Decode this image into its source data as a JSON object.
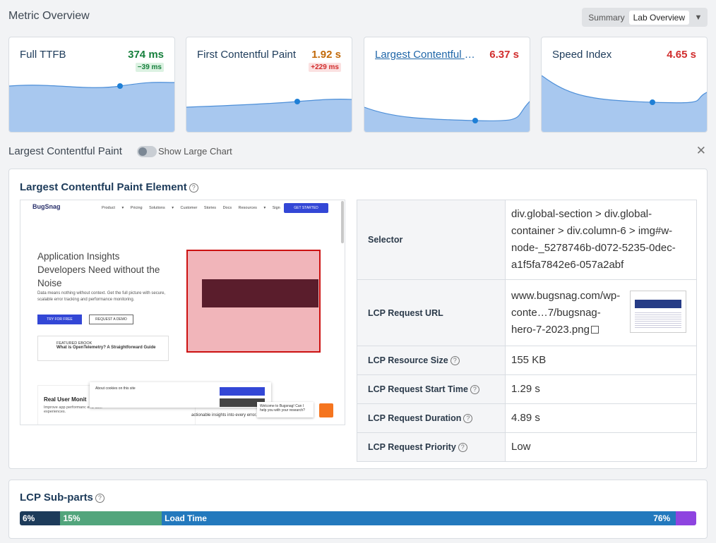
{
  "header": {
    "title": "Metric Overview",
    "view_options": [
      "Summary",
      "Lab Overview"
    ],
    "selected_view": "Lab Overview"
  },
  "metrics": [
    {
      "name": "Full TTFB",
      "value": "374 ms",
      "status": "good",
      "delta": "−39 ms",
      "delta_status": "good"
    },
    {
      "name": "First Contentful Paint",
      "value": "1.92 s",
      "status": "mid",
      "delta": "+229 ms",
      "delta_status": "bad"
    },
    {
      "name": "Largest Contentful Paint",
      "value": "6.37 s",
      "status": "bad",
      "delta": "",
      "delta_status": ""
    },
    {
      "name": "Speed Index",
      "value": "4.65 s",
      "status": "bad",
      "delta": "",
      "delta_status": ""
    }
  ],
  "lcp_section": {
    "title": "Largest Contentful Paint",
    "toggle_label": "Show Large Chart",
    "toggle_on": false
  },
  "lcp_element": {
    "title": "Largest Contentful Paint Element",
    "preview": {
      "logo": "BugSnag",
      "nav_links": "Product ▾ Pricing Solutions ▾ Customer Stories Docs Resources ▾ Sign in",
      "cta": "GET STARTED",
      "headline": "Application Insights Developers Need without the Noise",
      "subtext": "Data means nothing without context. Get the full picture with secure, scalable error tracking and performance monitoring.",
      "btn_primary": "TRY FOR FREE",
      "btn_secondary": "REQUEST A DEMO",
      "ebook_tag": "FEATURED EBOOK",
      "ebook_title": "What is OpenTelemetry? A Straightforward Guide",
      "rum_title": "Real User Monit",
      "rum_sub": "Improve app performanc end-user experiences.",
      "cookie_text": "About cookies on this site",
      "actionable": "actionable insights into every error.",
      "chat_text": "Welcome to Bugsnag! Can I help you with your research?"
    },
    "rows": [
      {
        "key": "Selector",
        "value": "div.global-section > div.global-container > div.column-6 > img#w-node-_5278746b-d072-5235-0dec-a1f5fa7842e6-057a2abf",
        "help": false
      },
      {
        "key": "LCP Request URL",
        "value": "www.bugsnag.com/wp-conte…7/bugsnag-hero-7-2023.png",
        "help": false
      },
      {
        "key": "LCP Resource Size",
        "value": "155 KB",
        "help": true
      },
      {
        "key": "LCP Request Start Time",
        "value": "1.29 s",
        "help": true
      },
      {
        "key": "LCP Request Duration",
        "value": "4.89 s",
        "help": true
      },
      {
        "key": "LCP Request Priority",
        "value": "Low",
        "help": true
      }
    ]
  },
  "subparts": {
    "title": "LCP Sub-parts",
    "segments": [
      {
        "label": "6%",
        "pct": 6,
        "color": "#1d3b5a"
      },
      {
        "label": "15%",
        "pct": 15,
        "color": "#52a57c"
      },
      {
        "label": "Load Time",
        "pct": 76,
        "color": "#2379bd",
        "right_label": "76%"
      },
      {
        "label": "",
        "pct": 3,
        "color": "#8e44e0"
      }
    ]
  },
  "icons": {
    "help": "help-circle-icon",
    "close": "close-icon",
    "external": "external-link-icon",
    "caret": "caret-down-icon"
  }
}
